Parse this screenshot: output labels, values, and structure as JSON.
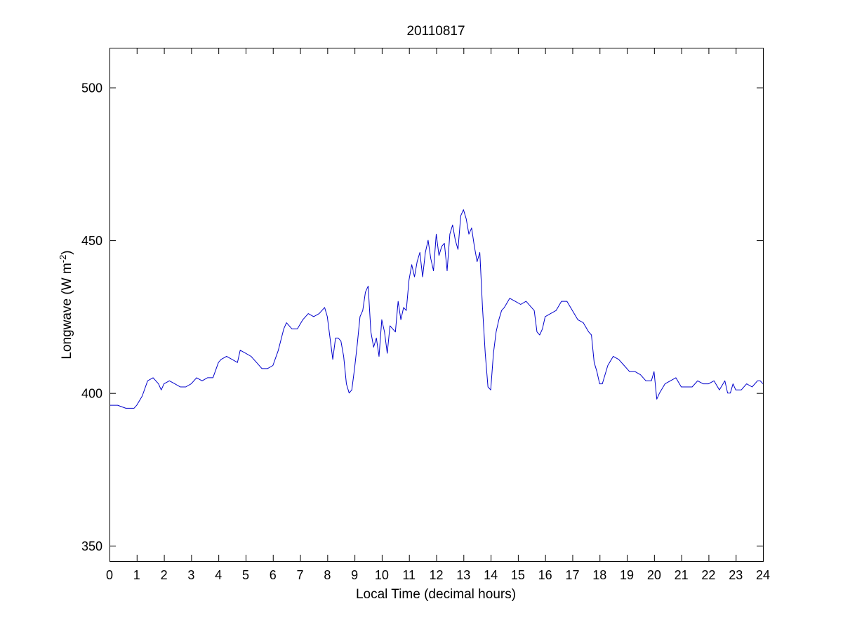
{
  "chart_data": {
    "type": "line",
    "title": "20110817",
    "xlabel": "Local Time (decimal hours)",
    "ylabel": {
      "prefix": "Longwave (W m",
      "sup": "-2",
      "suffix": ")"
    },
    "xlim": [
      0,
      24
    ],
    "ylim": [
      345,
      513
    ],
    "xticks": [
      0,
      1,
      2,
      3,
      4,
      5,
      6,
      7,
      8,
      9,
      10,
      11,
      12,
      13,
      14,
      15,
      16,
      17,
      18,
      19,
      20,
      21,
      22,
      23,
      24
    ],
    "yticks": [
      350,
      400,
      450,
      500
    ],
    "grid": false,
    "series": [
      {
        "color": "#0000cc",
        "x": [
          0,
          0.3,
          0.6,
          0.9,
          1.0,
          1.2,
          1.4,
          1.6,
          1.8,
          1.9,
          2.0,
          2.2,
          2.4,
          2.6,
          2.8,
          3.0,
          3.2,
          3.4,
          3.6,
          3.8,
          4.0,
          4.1,
          4.3,
          4.5,
          4.7,
          4.8,
          5.0,
          5.2,
          5.4,
          5.6,
          5.8,
          6.0,
          6.2,
          6.4,
          6.5,
          6.7,
          6.9,
          7.1,
          7.3,
          7.5,
          7.7,
          7.8,
          7.9,
          8.0,
          8.1,
          8.2,
          8.3,
          8.4,
          8.5,
          8.6,
          8.7,
          8.8,
          8.9,
          9.0,
          9.1,
          9.2,
          9.3,
          9.4,
          9.5,
          9.6,
          9.7,
          9.8,
          9.9,
          10.0,
          10.1,
          10.2,
          10.3,
          10.4,
          10.5,
          10.6,
          10.7,
          10.8,
          10.9,
          11.0,
          11.1,
          11.2,
          11.3,
          11.4,
          11.5,
          11.6,
          11.7,
          11.8,
          11.9,
          12.0,
          12.1,
          12.2,
          12.3,
          12.4,
          12.5,
          12.6,
          12.7,
          12.8,
          12.9,
          13.0,
          13.1,
          13.2,
          13.3,
          13.4,
          13.5,
          13.6,
          13.7,
          13.8,
          13.9,
          14.0,
          14.1,
          14.2,
          14.3,
          14.4,
          14.5,
          14.7,
          14.9,
          15.1,
          15.3,
          15.5,
          15.6,
          15.7,
          15.8,
          15.9,
          16.0,
          16.2,
          16.4,
          16.6,
          16.8,
          17.0,
          17.2,
          17.4,
          17.6,
          17.7,
          17.8,
          17.9,
          18.0,
          18.1,
          18.3,
          18.5,
          18.7,
          18.9,
          19.1,
          19.3,
          19.5,
          19.7,
          19.9,
          20.0,
          20.1,
          20.2,
          20.4,
          20.6,
          20.8,
          21.0,
          21.2,
          21.4,
          21.6,
          21.8,
          22.0,
          22.2,
          22.4,
          22.6,
          22.7,
          22.8,
          22.9,
          23.0,
          23.2,
          23.4,
          23.6,
          23.8,
          23.9,
          24.0
        ],
        "y": [
          396,
          396,
          395,
          395,
          396,
          399,
          404,
          405,
          403,
          401,
          403,
          404,
          403,
          402,
          402,
          403,
          405,
          404,
          405,
          405,
          410,
          411,
          412,
          411,
          410,
          414,
          413,
          412,
          410,
          408,
          408,
          409,
          414,
          421,
          423,
          421,
          421,
          424,
          426,
          425,
          426,
          427,
          428,
          425,
          418,
          411,
          418,
          418,
          417,
          412,
          403,
          400,
          401,
          408,
          416,
          425,
          427,
          433,
          435,
          420,
          415,
          418,
          412,
          424,
          420,
          413,
          422,
          421,
          420,
          430,
          424,
          428,
          427,
          437,
          442,
          438,
          443,
          446,
          438,
          446,
          450,
          444,
          440,
          452,
          445,
          448,
          449,
          440,
          452,
          455,
          450,
          447,
          458,
          460,
          457,
          452,
          454,
          448,
          443,
          446,
          428,
          413,
          402,
          401,
          413,
          420,
          424,
          427,
          428,
          431,
          430,
          429,
          430,
          428,
          427,
          420,
          419,
          421,
          425,
          426,
          427,
          430,
          430,
          427,
          424,
          423,
          420,
          419,
          410,
          407,
          403,
          403,
          409,
          412,
          411,
          409,
          407,
          407,
          406,
          404,
          404,
          407,
          398,
          400,
          403,
          404,
          405,
          402,
          402,
          402,
          404,
          403,
          403,
          404,
          401,
          404,
          400,
          400,
          403,
          401,
          401,
          403,
          402,
          404,
          404,
          403
        ]
      }
    ]
  }
}
